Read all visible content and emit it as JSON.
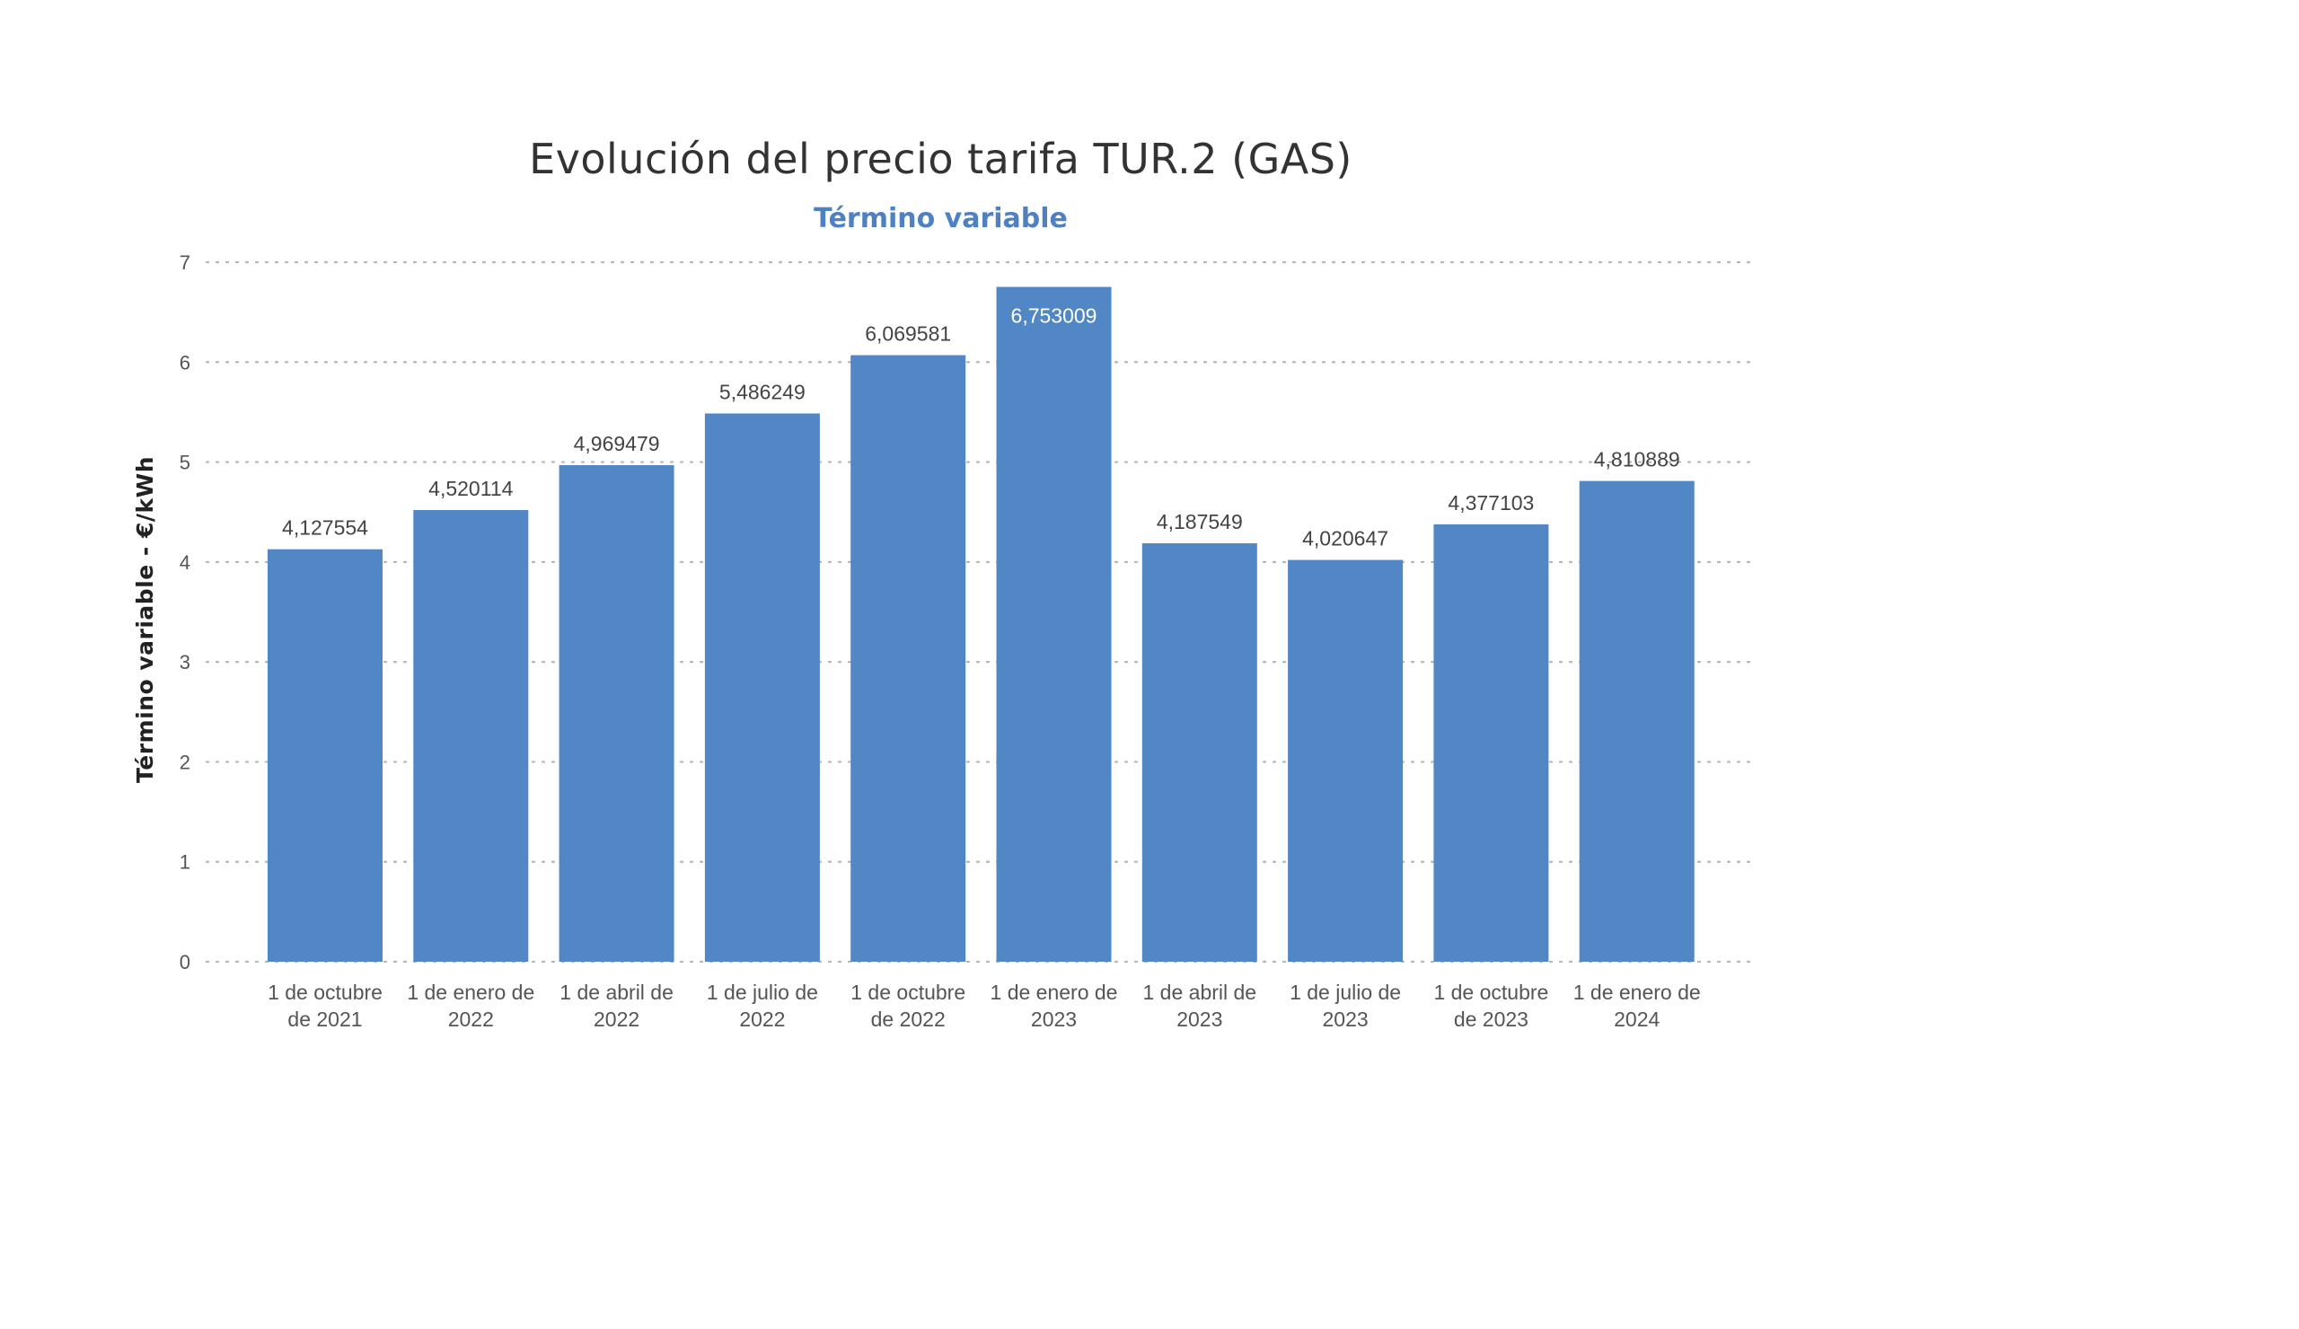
{
  "chart_data": {
    "type": "bar",
    "title": "Evolución del precio tarifa TUR.2 (GAS)",
    "subtitle": "Término variable",
    "ylabel": "Término variable - €/kWh",
    "xlabel": "",
    "ylim": [
      0,
      7
    ],
    "yticks": [
      "0",
      "1",
      "2",
      "3",
      "4",
      "5",
      "6",
      "7"
    ],
    "grid": true,
    "bar_color": "#5287c6",
    "categories": [
      [
        "1 de octubre",
        "de 2021"
      ],
      [
        "1 de enero de",
        "2022"
      ],
      [
        "1 de abril de",
        "2022"
      ],
      [
        "1 de julio de",
        "2022"
      ],
      [
        "1 de octubre",
        "de 2022"
      ],
      [
        "1 de enero de",
        "2023"
      ],
      [
        "1 de abril de",
        "2023"
      ],
      [
        "1 de julio de",
        "2023"
      ],
      [
        "1 de octubre",
        "de 2023"
      ],
      [
        "1 de enero de",
        "2024"
      ]
    ],
    "values": [
      4.127554,
      4.520114,
      4.969479,
      5.486249,
      6.069581,
      6.753009,
      4.187549,
      4.020647,
      4.377103,
      4.810889
    ],
    "labels": [
      "4,127554",
      "4,520114",
      "4,969479",
      "5,486249",
      "6,069581",
      "6,753009",
      "4,187549",
      "4,020647",
      "4,377103",
      "4,810889"
    ]
  }
}
